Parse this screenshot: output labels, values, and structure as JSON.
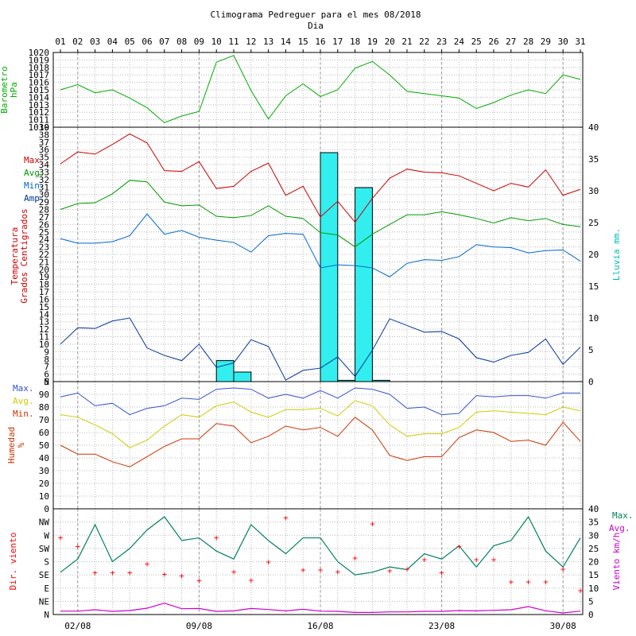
{
  "chart_data": {
    "type": "line",
    "title": "Climograma Pedreguer para el mes 08/2018",
    "top_xlabel": "Dia",
    "days": [
      "01",
      "02",
      "03",
      "04",
      "05",
      "06",
      "07",
      "08",
      "09",
      "10",
      "11",
      "12",
      "13",
      "14",
      "15",
      "16",
      "17",
      "18",
      "19",
      "20",
      "21",
      "22",
      "23",
      "24",
      "25",
      "26",
      "27",
      "28",
      "29",
      "30",
      "31"
    ],
    "bottom_dates": [
      "02/08",
      "09/08",
      "16/08",
      "23/08",
      "30/08"
    ],
    "bottom_date_days": [
      2,
      9,
      16,
      23,
      30
    ],
    "colors": {
      "pressure": "#00aa00",
      "max": "#cc0000",
      "avg": "#009900",
      "min": "#0066cc",
      "amp": "#003399",
      "rain": "#33eeee",
      "hum_max": "#3355cc",
      "hum_avg": "#cccc00",
      "hum_min": "#cc3300",
      "wind_max": "#008060",
      "wind_avg": "#cc00cc",
      "wind_dir": "#ff0000"
    },
    "panels": {
      "pressure": {
        "ylabel": [
          "Barometro",
          "hPa"
        ],
        "ylim": [
          1010,
          1020
        ],
        "ticks": [
          "1010",
          "1011",
          "1012",
          "1013",
          "1014",
          "1015",
          "1016",
          "1017",
          "1018",
          "1019",
          "1020"
        ],
        "values": [
          1015.0,
          1015.7,
          1014.6,
          1015.0,
          1013.9,
          1012.6,
          1010.6,
          1011.5,
          1012.1,
          1018.7,
          1019.6,
          1014.9,
          1011.1,
          1014.2,
          1015.8,
          1014.1,
          1015.0,
          1017.9,
          1018.8,
          1017.0,
          1014.8,
          1014.5,
          1014.2,
          1013.9,
          1012.5,
          1013.3,
          1014.3,
          1015.0,
          1014.5,
          1017.0,
          1016.4
        ]
      },
      "temperature": {
        "ylabel": [
          "Temperatura",
          "Grados Centigrados"
        ],
        "legend": [
          "Max.",
          "Avg.",
          "Min.",
          "Amp."
        ],
        "ylim": [
          5,
          39
        ],
        "ticks": [
          "5",
          "6",
          "7",
          "8",
          "9",
          "10",
          "11",
          "12",
          "13",
          "14",
          "15",
          "16",
          "17",
          "18",
          "19",
          "20",
          "21",
          "22",
          "23",
          "24",
          "25",
          "26",
          "27",
          "28",
          "29",
          "30",
          "31",
          "32",
          "33",
          "34",
          "35",
          "36",
          "37",
          "38",
          "39"
        ],
        "max": [
          34.1,
          35.7,
          35.4,
          36.7,
          38.1,
          36.9,
          33.2,
          33.1,
          34.4,
          30.8,
          31.1,
          33.1,
          34.2,
          29.9,
          31.1,
          27.0,
          29.1,
          26.3,
          29.5,
          32.2,
          33.4,
          33.0,
          32.9,
          32.5,
          31.5,
          30.5,
          31.5,
          31.0,
          33.3,
          29.9,
          30.7
        ],
        "avg": [
          28.0,
          28.8,
          28.9,
          30.1,
          31.9,
          31.7,
          29.0,
          28.5,
          28.6,
          27.1,
          26.9,
          27.2,
          28.5,
          27.1,
          26.8,
          24.9,
          24.6,
          23.0,
          24.7,
          26.0,
          27.3,
          27.3,
          27.7,
          27.3,
          26.8,
          26.2,
          26.9,
          26.5,
          26.8,
          26.0,
          25.7
        ],
        "min": [
          24.1,
          23.5,
          23.5,
          23.7,
          24.5,
          27.4,
          24.7,
          25.2,
          24.3,
          23.9,
          23.6,
          22.3,
          24.5,
          24.8,
          24.7,
          20.2,
          20.6,
          20.5,
          20.2,
          19.0,
          20.8,
          21.3,
          21.2,
          21.7,
          23.3,
          23.0,
          22.9,
          22.2,
          22.5,
          22.6,
          21.1
        ],
        "amp": [
          10.0,
          12.2,
          12.1,
          13.1,
          13.5,
          9.5,
          8.5,
          7.8,
          10.0,
          6.9,
          7.5,
          10.6,
          9.7,
          5.2,
          6.5,
          6.8,
          8.3,
          5.7,
          9.2,
          13.4,
          12.5,
          11.6,
          11.7,
          10.7,
          8.2,
          7.6,
          8.5,
          8.9,
          10.7,
          7.3,
          9.6
        ]
      },
      "rain": {
        "ylabel": "Lluvia mm.",
        "ylim": [
          0,
          40
        ],
        "ticks": [
          "0",
          "5",
          "10",
          "15",
          "20",
          "25",
          "30",
          "35",
          "40"
        ],
        "values": [
          0,
          0,
          0,
          0,
          0,
          0,
          0,
          0,
          0,
          3.3,
          1.5,
          0,
          0,
          0,
          0,
          36.0,
          0.2,
          30.5,
          0.2,
          0,
          0,
          0,
          0,
          0,
          0,
          0,
          0,
          0,
          0,
          0,
          0
        ]
      },
      "humidity": {
        "ylabel": [
          "Humedad",
          "%"
        ],
        "legend": [
          "Max.",
          "Avg.",
          "Min."
        ],
        "ylim": [
          0,
          100
        ],
        "ticks": [
          "0",
          "10",
          "20",
          "30",
          "40",
          "50",
          "60",
          "70",
          "80",
          "90",
          "N"
        ],
        "max": [
          88,
          91,
          81,
          83,
          74,
          79,
          81,
          87,
          86,
          94,
          95,
          94,
          87,
          90,
          87,
          93,
          87,
          95,
          94,
          90,
          79,
          80,
          74,
          75,
          89,
          88,
          89,
          89,
          87,
          91,
          91
        ],
        "avg": [
          74,
          72,
          66,
          59,
          48,
          54,
          65,
          74,
          72,
          81,
          84,
          76,
          72,
          78,
          78,
          79,
          73,
          85,
          81,
          66,
          57,
          59,
          59,
          64,
          76,
          77,
          76,
          75,
          74,
          80,
          77
        ],
        "min": [
          50,
          43,
          43,
          37,
          33,
          41,
          49,
          55,
          55,
          67,
          65,
          52,
          57,
          65,
          62,
          64,
          57,
          72,
          62,
          42,
          38,
          41,
          41,
          56,
          62,
          60,
          53,
          54,
          50,
          68,
          53
        ]
      },
      "wind": {
        "ylabel": "Dir. viento",
        "right_label": "Viento km/h",
        "legend": [
          "Max.",
          "Avg."
        ],
        "dir_ticks": [
          "N",
          "NE",
          "E",
          "SE",
          "S",
          "SW",
          "W",
          "NW"
        ],
        "speed_ylim": [
          0,
          40
        ],
        "speed_ticks": [
          "0",
          "5",
          "10",
          "15",
          "20",
          "25",
          "30",
          "35",
          "40"
        ],
        "max": [
          16,
          21,
          34,
          20,
          25,
          32,
          37,
          28,
          29,
          24,
          21,
          34,
          28,
          23,
          29,
          29,
          20,
          15,
          16,
          18,
          17,
          23,
          21,
          26,
          18,
          26,
          28,
          37,
          24,
          18,
          29
        ],
        "avg": [
          1.3,
          1.3,
          1.8,
          1.2,
          1.5,
          2.4,
          4.3,
          2.2,
          2.3,
          1.2,
          1.4,
          2.3,
          1.9,
          1.4,
          2.0,
          1.3,
          1.2,
          0.8,
          0.8,
          1.0,
          1.0,
          1.2,
          1.2,
          1.5,
          1.4,
          1.6,
          1.8,
          3.0,
          1.4,
          0.6,
          1.3
        ],
        "direction_deg": [
          263,
          233,
          143,
          143,
          143,
          173,
          138,
          133,
          116,
          263,
          146,
          118,
          180,
          330,
          153,
          153,
          146,
          193,
          310,
          150,
          155,
          188,
          143,
          233,
          188,
          188,
          113,
          113,
          113,
          155,
          83
        ]
      }
    }
  }
}
